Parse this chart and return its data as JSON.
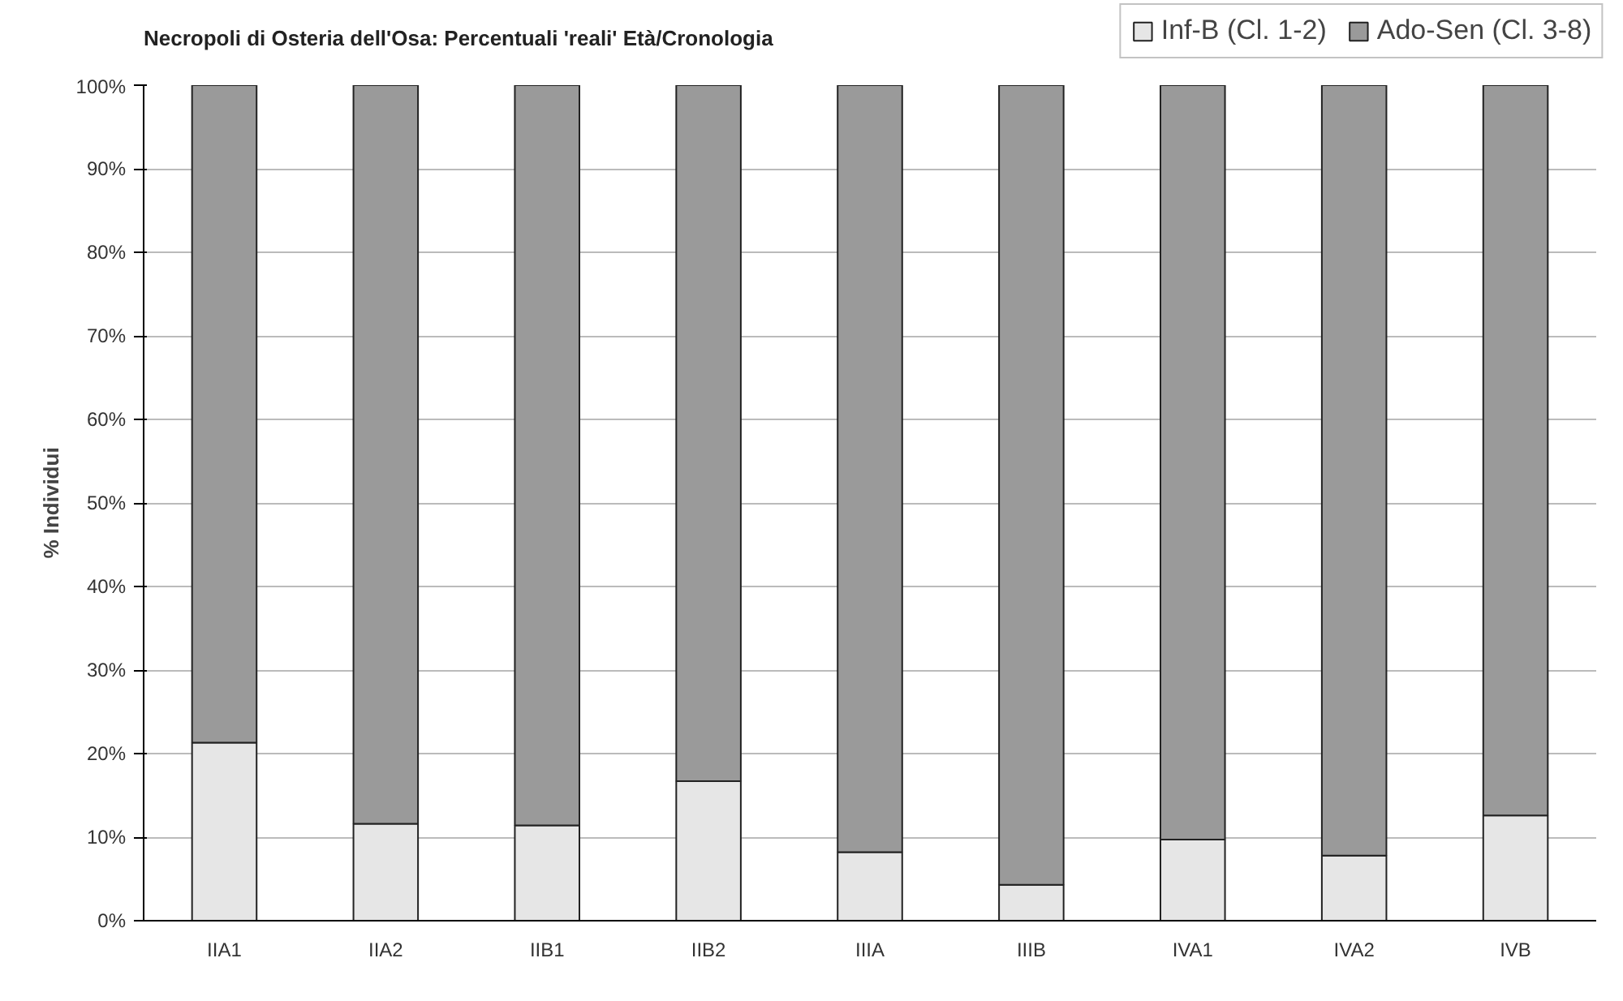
{
  "chart_data": {
    "type": "bar",
    "title": "Necropoli di Osteria dell'Osa: Percentuali 'reali' Età/Cronologia",
    "ylabel": "% Individui",
    "categories": [
      "IIA1",
      "IIA2",
      "IIB1",
      "IIB2",
      "IIIA",
      "IIIB",
      "IVA1",
      "IVA2",
      "IVB"
    ],
    "stacked": true,
    "series": [
      {
        "name": "Inf-B (Cl. 1-2)",
        "color": "#e6e6e6",
        "values": [
          21.3,
          11.6,
          11.4,
          16.7,
          8.2,
          4.3,
          9.7,
          7.8,
          12.6
        ]
      },
      {
        "name": "Ado-Sen (Cl. 3-8)",
        "color": "#9a9a9a",
        "values": [
          78.7,
          88.4,
          88.6,
          83.3,
          91.8,
          95.7,
          90.3,
          92.2,
          87.4
        ]
      }
    ],
    "ylim": [
      0,
      100
    ],
    "yticks": [
      {
        "value": 0,
        "label": "0%"
      },
      {
        "value": 10,
        "label": "10%"
      },
      {
        "value": 20,
        "label": "20%"
      },
      {
        "value": 30,
        "label": "30%"
      },
      {
        "value": 40,
        "label": "40%"
      },
      {
        "value": 50,
        "label": "50%"
      },
      {
        "value": 60,
        "label": "60%"
      },
      {
        "value": 70,
        "label": "70%"
      },
      {
        "value": 80,
        "label": "80%"
      },
      {
        "value": 90,
        "label": "90%"
      },
      {
        "value": 100,
        "label": "100%"
      }
    ],
    "grid": "y",
    "legend": "top right"
  }
}
